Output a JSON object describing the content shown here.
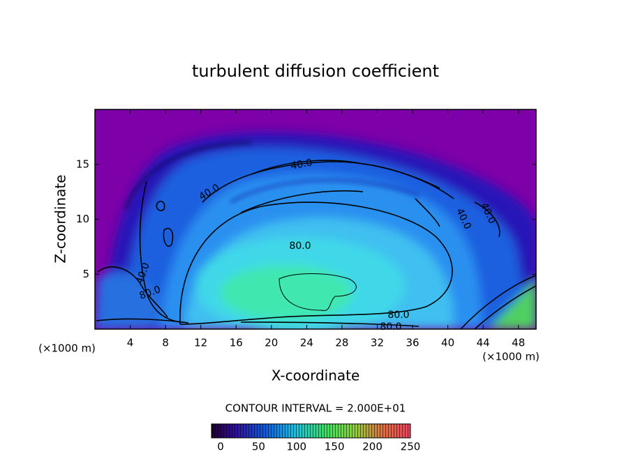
{
  "chart_data": {
    "type": "contour",
    "title": "turbulent diffusion coefficient",
    "xlabel": "X-coordinate",
    "ylabel": "Z-coordinate",
    "y_unit_label": "(×1000 m)",
    "x_unit_label": "(×1000 m)",
    "xlim": [
      0,
      50
    ],
    "ylim": [
      0,
      20
    ],
    "xticks": [
      4,
      8,
      12,
      16,
      20,
      24,
      28,
      32,
      36,
      40,
      44,
      48
    ],
    "yticks": [
      5,
      10,
      15
    ],
    "contour_interval_label": "CONTOUR INTERVAL = 2.000E+01",
    "contour_labels": [
      {
        "value": 40,
        "label": "40.0"
      },
      {
        "value": 40,
        "label": "40.0"
      },
      {
        "value": 40,
        "label": "40.0"
      },
      {
        "value": 40,
        "label": "40.0"
      },
      {
        "value": 80,
        "label": "80.0"
      },
      {
        "value": 80,
        "label": "80.0"
      },
      {
        "value": 80,
        "label": "80.0"
      },
      {
        "value": 40,
        "label": "40.0"
      },
      {
        "value": 80,
        "label": "80.0"
      }
    ],
    "colorbar": {
      "lim": [
        0,
        250
      ],
      "ticks": [
        0,
        50,
        100,
        150,
        200,
        250
      ]
    }
  }
}
